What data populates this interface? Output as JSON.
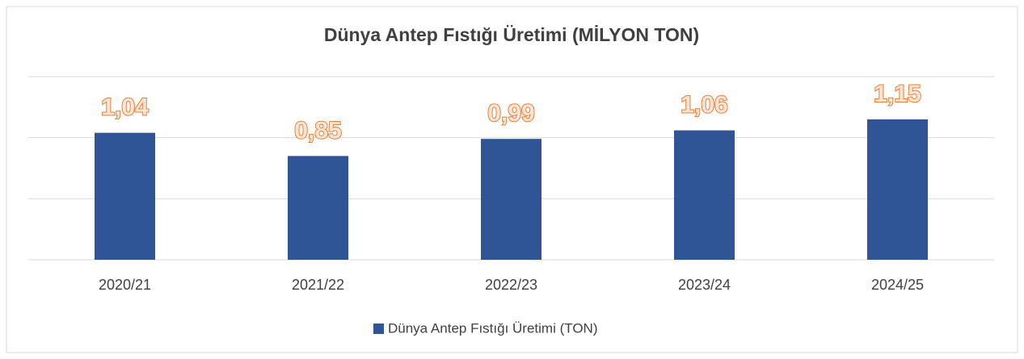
{
  "chart_data": {
    "type": "bar",
    "title": "Dünya Antep Fıstığı Üretimi (MİLYON TON)",
    "categories": [
      "2020/21",
      "2021/22",
      "2022/23",
      "2023/24",
      "2024/25"
    ],
    "series": [
      {
        "name": "Dünya Antep Fıstığı Üretimi (TON)",
        "color": "#2f5597",
        "values": [
          1.04,
          0.85,
          0.99,
          1.06,
          1.15
        ],
        "value_labels": [
          "1,04",
          "0,85",
          "0,99",
          "1,06",
          "1,15"
        ]
      }
    ],
    "ylim": [
      0,
      1.5
    ],
    "yticks": [
      0,
      0.5,
      1,
      1.5
    ],
    "grid": true,
    "legend": "bottom"
  }
}
